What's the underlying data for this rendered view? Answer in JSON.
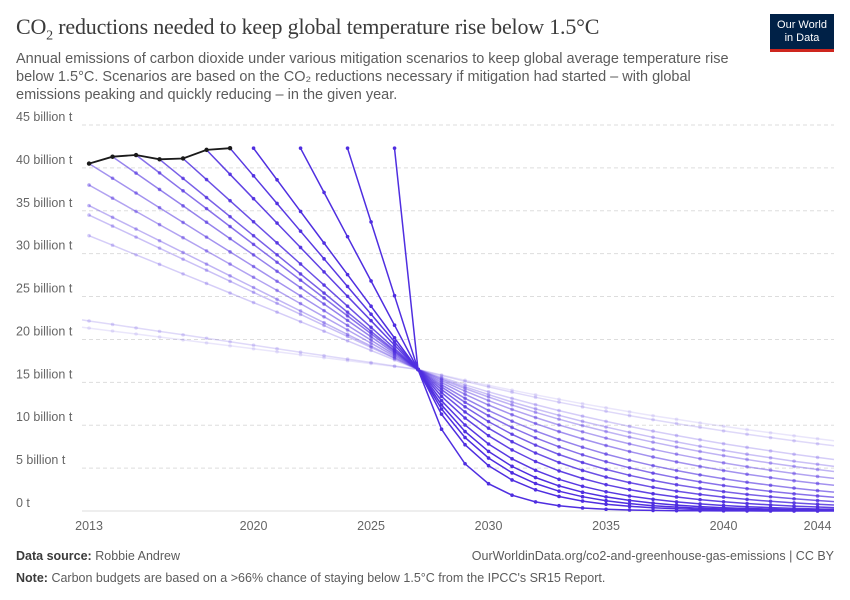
{
  "header": {
    "title_pre": "CO",
    "title_sub": "2",
    "title_post": " reductions needed to keep global temperature rise below 1.5°C",
    "subtitle": "Annual emissions of carbon dioxide under various mitigation scenarios to keep global average temperature rise below 1.5°C. Scenarios are based on the CO₂ reductions necessary if mitigation had started – with global emissions peaking and quickly reducing – in the given year.",
    "logo_line1": "Our World",
    "logo_line2": "in Data"
  },
  "footer": {
    "source_label": "Data source:",
    "source_value": "Robbie Andrew",
    "url_license": "OurWorldinData.org/co2-and-greenhouse-gas-emissions | CC BY",
    "note_label": "Note:",
    "note_value": "Carbon budgets are based on a >66% chance of staying below 1.5°C from the IPCC's SR15 Report."
  },
  "colors": {
    "historical": "#1a1a1a",
    "scenario": "#4f2ee0",
    "grid": "#dddddd",
    "axis_text": "#666666"
  },
  "chart_data": {
    "type": "line",
    "title": "CO₂ reductions needed to keep global temperature rise below 1.5°C",
    "xlim": [
      2012.7,
      2044.7
    ],
    "ylim": [
      0,
      45
    ],
    "x_ticks": [
      2013,
      2020,
      2025,
      2030,
      2035,
      2040,
      2044
    ],
    "y_ticks": [
      0,
      5,
      10,
      15,
      20,
      25,
      30,
      35,
      40,
      45
    ],
    "y_tick_labels": [
      "0 t",
      "5 billion t",
      "10 billion t",
      "15 billion t",
      "20 billion t",
      "25 billion t",
      "30 billion t",
      "35 billion t",
      "40 billion t",
      "45 billion t"
    ],
    "historical": {
      "x": [
        2013,
        2014,
        2015,
        2016,
        2017,
        2018,
        2019
      ],
      "y": [
        40.5,
        41.3,
        41.5,
        41.0,
        41.1,
        42.1,
        42.3
      ]
    },
    "scenarios": [
      {
        "start_year": 2000,
        "start": 25.8,
        "end": 8.2,
        "opacity": 0.12
      },
      {
        "start_year": 2000,
        "start": 27.4,
        "end": 7.6,
        "opacity": 0.18
      },
      {
        "start_year": 2013,
        "start": 32.1,
        "end": 6.0,
        "opacity": 0.24
      },
      {
        "start_year": 2013,
        "start": 34.5,
        "end": 5.2,
        "opacity": 0.3
      },
      {
        "start_year": 2013,
        "start": 35.6,
        "end": 4.6,
        "opacity": 0.36
      },
      {
        "start_year": 2013,
        "start": 38.0,
        "end": 3.8,
        "opacity": 0.44
      },
      {
        "start_year": 2013,
        "start": 40.5,
        "end": 3.0,
        "opacity": 0.52
      },
      {
        "start_year": 2014,
        "start": 41.3,
        "end": 2.2,
        "opacity": 0.6
      },
      {
        "start_year": 2015,
        "start": 41.5,
        "end": 1.6,
        "opacity": 0.68
      },
      {
        "start_year": 2016,
        "start": 41.0,
        "end": 1.1,
        "opacity": 0.76
      },
      {
        "start_year": 2017,
        "start": 41.1,
        "end": 0.7,
        "opacity": 0.84
      },
      {
        "start_year": 2018,
        "start": 42.1,
        "end": 0.4,
        "opacity": 0.9
      },
      {
        "start_year": 2019,
        "start": 42.3,
        "end": 0.2,
        "opacity": 0.95
      },
      {
        "start_year": 2020,
        "start": 42.3,
        "end": 0.1,
        "opacity": 1.0
      },
      {
        "start_year": 2022,
        "start": 42.3,
        "end": 0.05,
        "opacity": 1.0
      },
      {
        "start_year": 2024,
        "start": 42.3,
        "end": 0.02,
        "opacity": 1.0
      },
      {
        "start_year": 2026,
        "start": 42.3,
        "end": 0.0,
        "opacity": 1.0
      }
    ],
    "converge": {
      "x": 2027,
      "y": 16.5
    }
  }
}
